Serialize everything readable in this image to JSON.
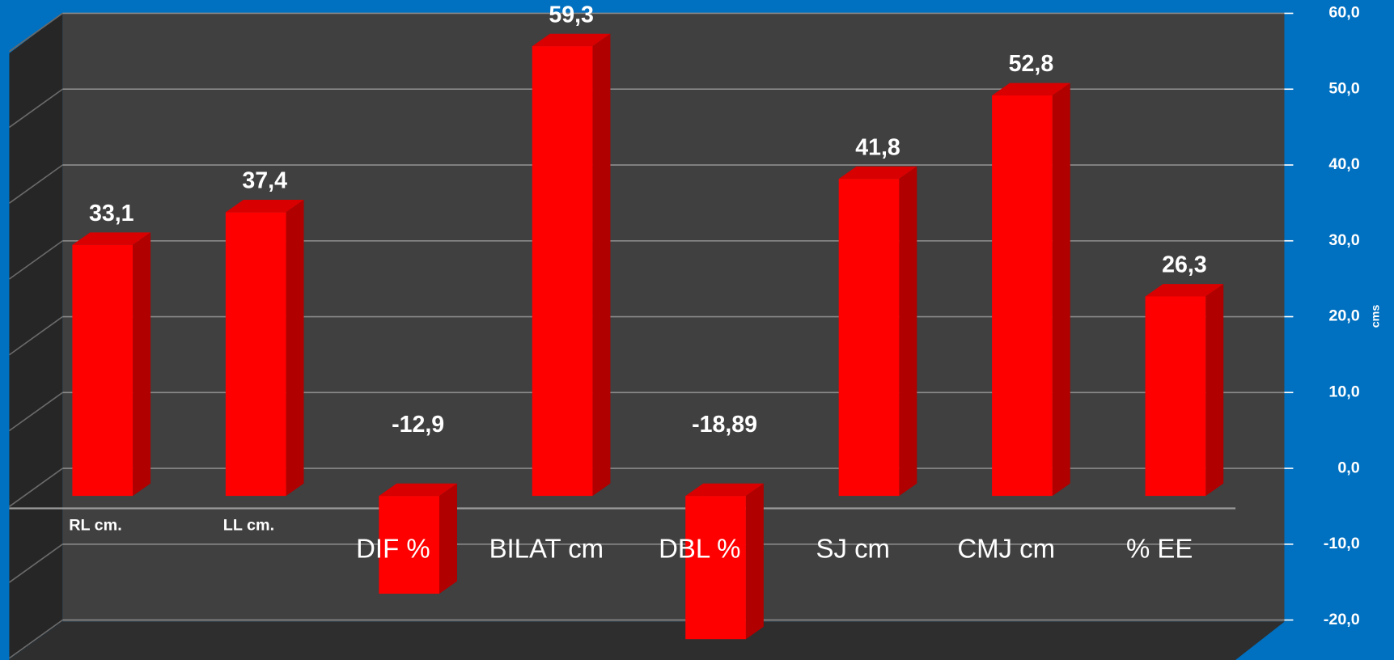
{
  "chart_data": {
    "type": "bar",
    "categories": [
      "RL cm.",
      "LL cm.",
      "DIF %",
      "BILAT cm",
      "DBL %",
      "SJ cm",
      "CMJ cm",
      "% EE"
    ],
    "values": [
      33.1,
      37.4,
      -12.9,
      59.3,
      -18.89,
      41.8,
      52.8,
      26.3
    ],
    "value_labels": [
      "33,1",
      "37,4",
      "-12,9",
      "59,3",
      "-18,89",
      "41,8",
      "52,8",
      "26,3"
    ],
    "color": "#ff0000",
    "y_axis_label": "cms",
    "ylim": [
      -20,
      60
    ],
    "yticks": [
      {
        "value": -20,
        "label": "-20,0"
      },
      {
        "value": -10,
        "label": "-10,0"
      },
      {
        "value": 0,
        "label": "0,0"
      },
      {
        "value": 10,
        "label": "10,0"
      },
      {
        "value": 20,
        "label": "20,0"
      },
      {
        "value": 30,
        "label": "30,0"
      },
      {
        "value": 40,
        "label": "40,0"
      },
      {
        "value": 50,
        "label": "50,0"
      },
      {
        "value": 60,
        "label": "60,0"
      }
    ],
    "grid": true
  }
}
